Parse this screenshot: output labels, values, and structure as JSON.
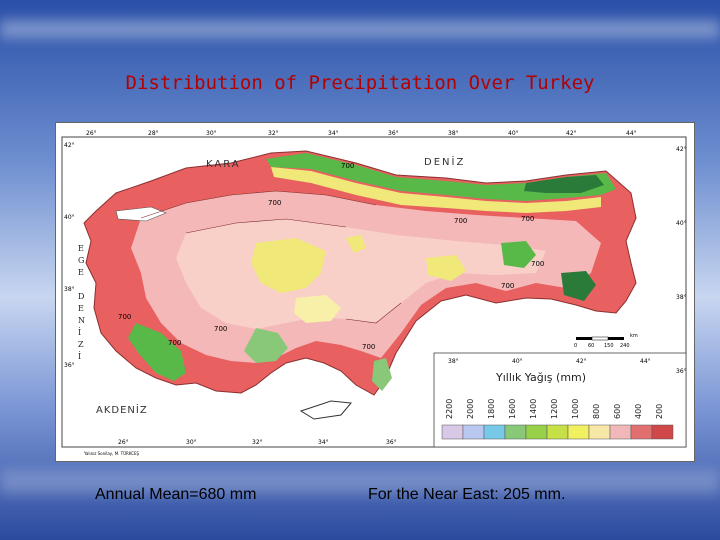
{
  "slide": {
    "title": "Distribution of Precipitation Over Turkey",
    "caption_left": "Annual Mean=680 mm",
    "caption_right": "For the Near East: 205 mm."
  },
  "map": {
    "sea_north": "KARA",
    "sea_north_2": "DENİZ",
    "sea_south": "AKDENİZ",
    "aegean_letters": [
      "E",
      "G",
      "E",
      "",
      "D",
      "E",
      "N",
      "İ",
      "Z",
      "İ"
    ],
    "longitudes_top": [
      "26°",
      "28°",
      "30°",
      "32°",
      "34°",
      "36°",
      "38°",
      "40°",
      "42°",
      "44°"
    ],
    "longitudes_bottom": [
      "26°",
      "30°",
      "32°",
      "34°",
      "36°"
    ],
    "longitudes_inset": [
      "38°",
      "40°",
      "42°",
      "44°"
    ],
    "latitudes_left": [
      "42°",
      "40°",
      "38°",
      "36°"
    ],
    "latitudes_right": [
      "42°",
      "40°",
      "38°",
      "36°"
    ],
    "contour_labels": [
      "700",
      "700",
      "700",
      "700",
      "700",
      "700",
      "700",
      "700",
      "700",
      "700"
    ],
    "scale_values": [
      "0",
      "60",
      "150",
      "240"
    ],
    "scale_unit": "km",
    "credit": "Yalınız Sonilay, M. TÜRKCEŞ",
    "legend": {
      "title": "Yıllık Yağış (mm)",
      "values": [
        "2200",
        "2000",
        "1800",
        "1600",
        "1400",
        "1200",
        "1000",
        "800",
        "600",
        "400",
        "200"
      ],
      "colors": [
        "#d8c8e8",
        "#b8c8f0",
        "#78c8e8",
        "#88c878",
        "#98d048",
        "#c8e048",
        "#f0f060",
        "#f8e8a8",
        "#f0b8b8",
        "#e07070",
        "#d04848"
      ]
    },
    "colors": {
      "dry_red": "#e86060",
      "pink": "#f4b8b8",
      "light_pink": "#f8d0c8",
      "yellow": "#f0e878",
      "pale_yellow": "#f8f0a8",
      "green": "#58b848",
      "dark_green": "#2a7a3a",
      "sea_white": "#ffffff"
    }
  }
}
